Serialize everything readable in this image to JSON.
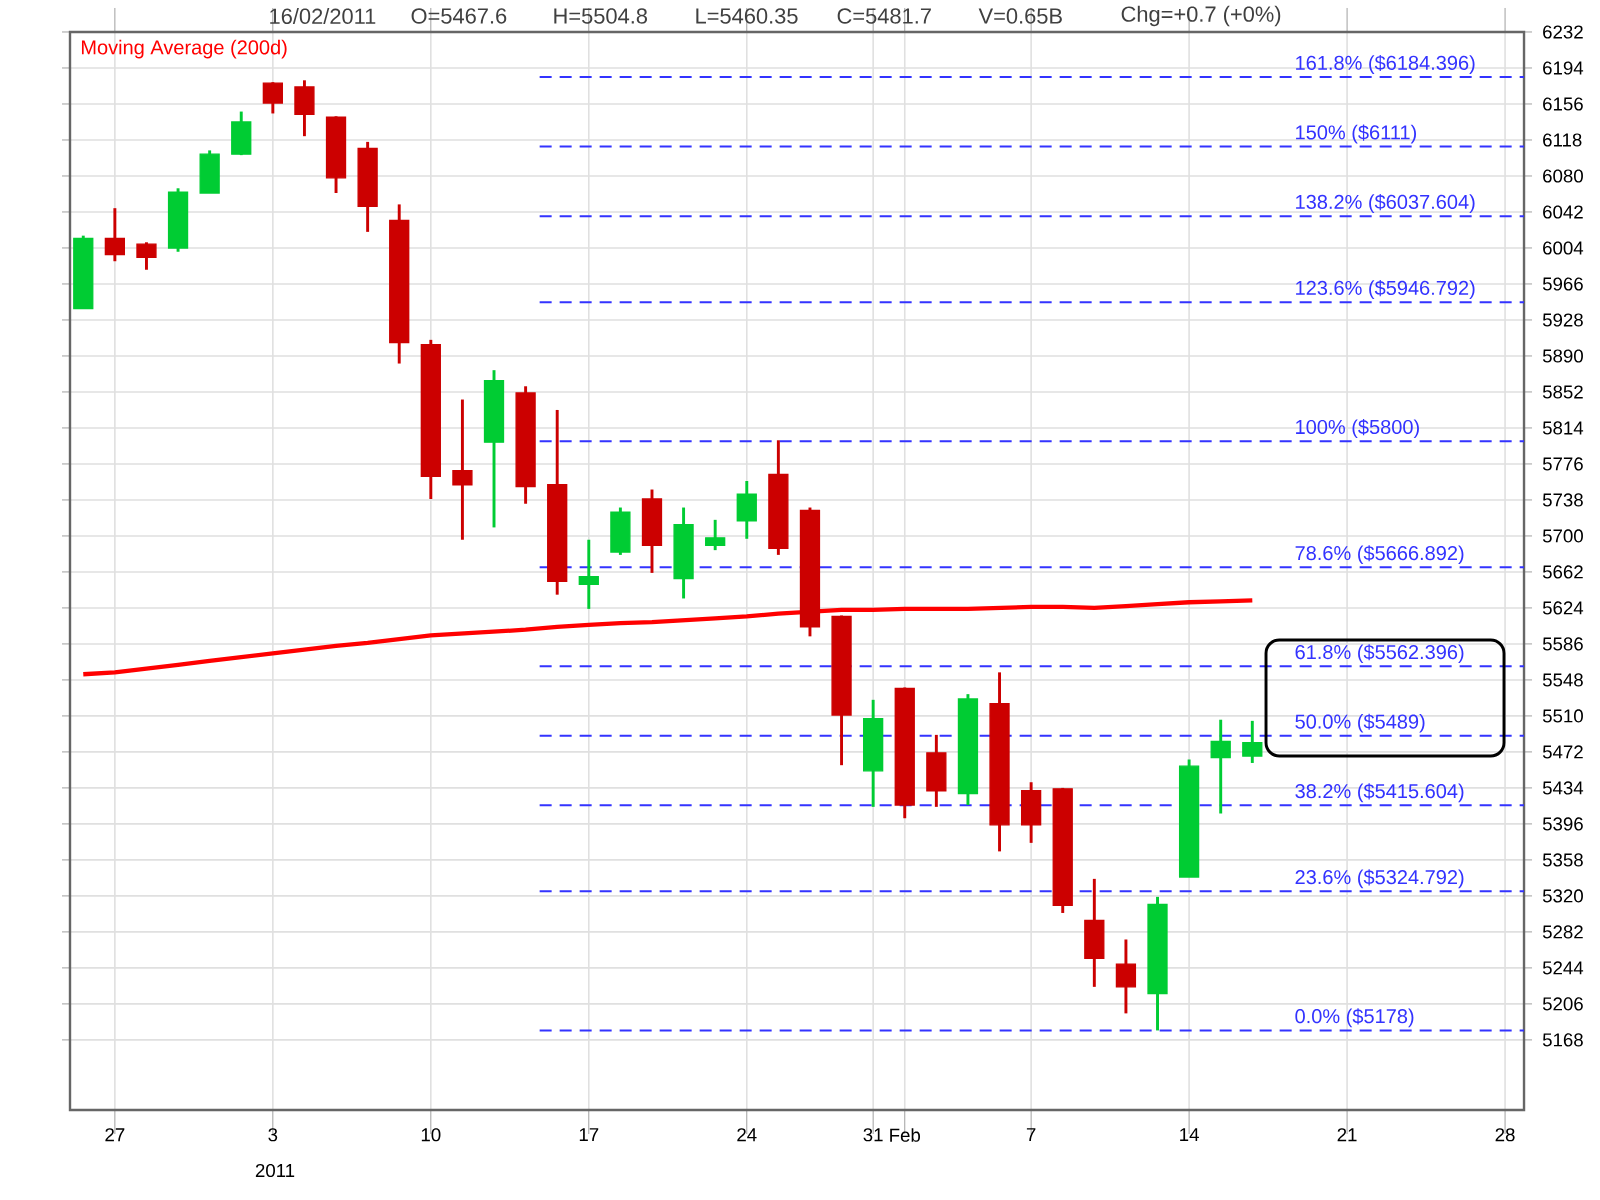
{
  "chart_data": {
    "type": "candlestick",
    "categories": [
      null,
      "27",
      null,
      null,
      null,
      null,
      "3",
      null,
      null,
      null,
      null,
      "10",
      null,
      null,
      null,
      null,
      "17",
      null,
      null,
      null,
      null,
      "24",
      null,
      null,
      null,
      "31",
      "Feb",
      null,
      null,
      null,
      "7",
      null,
      null,
      null,
      null,
      "14",
      null,
      null,
      null,
      null,
      "21",
      null,
      null,
      null,
      null,
      "28"
    ],
    "ohlc": [
      [
        5940,
        6017,
        5940,
        6014
      ],
      [
        6014,
        6046,
        5990,
        5997
      ],
      [
        6008,
        6010,
        5981,
        5994
      ],
      [
        6004,
        6067,
        6000,
        6063
      ],
      [
        6062,
        6107,
        6062,
        6103
      ],
      [
        6103,
        6148,
        6102,
        6137
      ],
      [
        6178,
        6179,
        6146,
        6157
      ],
      [
        6174,
        6181,
        6122,
        6145
      ],
      [
        6142,
        6143,
        6062,
        6078
      ],
      [
        6109,
        6116,
        6021,
        6048
      ],
      [
        6033,
        6050,
        5882,
        5904
      ],
      [
        5902,
        5907,
        5739,
        5763
      ],
      [
        5769,
        5844,
        5696,
        5754
      ],
      [
        5799,
        5875,
        5709,
        5864
      ],
      [
        5851,
        5858,
        5734,
        5752
      ],
      [
        5754,
        5833,
        5638,
        5652
      ],
      [
        5649,
        5696,
        5623,
        5657
      ],
      [
        5683,
        5730,
        5680,
        5725
      ],
      [
        5739,
        5749,
        5661,
        5690
      ],
      [
        5655,
        5730,
        5634,
        5712
      ],
      [
        5690,
        5717,
        5685,
        5698
      ],
      [
        5716,
        5758,
        5697,
        5744
      ],
      [
        5765,
        5801,
        5680,
        5687
      ],
      [
        5727,
        5730,
        5594,
        5604
      ],
      [
        5615,
        5616,
        5458,
        5511
      ],
      [
        5452,
        5527,
        5414,
        5507
      ],
      [
        5539,
        5540,
        5402,
        5416
      ],
      [
        5471,
        5490,
        5414,
        5431
      ],
      [
        5428,
        5533,
        5416,
        5528
      ],
      [
        5523,
        5556,
        5367,
        5395
      ],
      [
        5431,
        5440,
        5376,
        5395
      ],
      [
        5433,
        5434,
        5302,
        5310
      ],
      [
        5294,
        5338,
        5224,
        5254
      ],
      [
        5248,
        5274,
        5196,
        5224
      ],
      [
        5217,
        5319,
        5178,
        5311
      ],
      [
        5340,
        5464,
        5340,
        5457
      ],
      [
        5466,
        5506,
        5407,
        5483
      ],
      [
        5467.6,
        5504.8,
        5460.35,
        5481.7
      ],
      null,
      null,
      null,
      null,
      null,
      null,
      null,
      null
    ],
    "colors": [
      "#00cc33",
      "#cc0000",
      "#cc0000",
      "#00cc33",
      "#00cc33",
      "#00cc33",
      "#cc0000",
      "#cc0000",
      "#cc0000",
      "#cc0000",
      "#cc0000",
      "#cc0000",
      "#cc0000",
      "#00cc33",
      "#cc0000",
      "#cc0000",
      "#00cc33",
      "#00cc33",
      "#cc0000",
      "#00cc33",
      "#00cc33",
      "#00cc33",
      "#cc0000",
      "#cc0000",
      "#cc0000",
      "#00cc33",
      "#cc0000",
      "#cc0000",
      "#00cc33",
      "#cc0000",
      "#cc0000",
      "#cc0000",
      "#cc0000",
      "#cc0000",
      "#00cc33",
      "#00cc33",
      "#00cc33",
      "#00cc33",
      null,
      null,
      null,
      null,
      null,
      null,
      null,
      null
    ],
    "series": [
      {
        "name": "Moving Average (200d)",
        "type": "line",
        "color": "#ff0000",
        "values": [
          5554,
          5556,
          5560,
          5564,
          5568,
          5572,
          5576,
          5580,
          5584,
          5587,
          5591,
          5595,
          5597,
          5599,
          5601,
          5604,
          5606,
          5608,
          5609,
          5611,
          5613,
          5615,
          5618,
          null,
          5622,
          5622,
          5623,
          5623,
          5623,
          5624,
          5625,
          5625,
          5624,
          5626,
          5628,
          5630,
          5631,
          5632,
          null,
          null,
          null,
          null,
          null,
          null,
          null,
          null
        ]
      }
    ],
    "ylim": [
      5094,
      6232
    ],
    "yticks": [
      5168,
      5206,
      5244,
      5282,
      5320,
      5358,
      5396,
      5434,
      5472,
      5510,
      5548,
      5586,
      5624,
      5662,
      5700,
      5738,
      5776,
      5814,
      5852,
      5890,
      5928,
      5966,
      6004,
      6042,
      6080,
      6118,
      6156,
      6194,
      6232
    ],
    "grid": true,
    "legend": "top left",
    "ref_lines": [
      {
        "axis": "y",
        "value": 6184.396,
        "label": "161.8% ($6184.396)",
        "color": "#3333ff",
        "line_style": "dashed"
      },
      {
        "axis": "y",
        "value": 6111,
        "label": "150% ($6111)",
        "color": "#3333ff",
        "line_style": "dashed"
      },
      {
        "axis": "y",
        "value": 6037.604,
        "label": "138.2% ($6037.604)",
        "color": "#3333ff",
        "line_style": "dashed"
      },
      {
        "axis": "y",
        "value": 5946.792,
        "label": "123.6% ($5946.792)",
        "color": "#3333ff",
        "line_style": "dashed"
      },
      {
        "axis": "y",
        "value": 5800,
        "label": "100% ($5800)",
        "color": "#3333ff",
        "line_style": "dashed"
      },
      {
        "axis": "y",
        "value": 5666.892,
        "label": "78.6% ($5666.892)",
        "color": "#3333ff",
        "line_style": "dashed"
      },
      {
        "axis": "y",
        "value": 5562.396,
        "label": "61.8% ($5562.396)",
        "color": "#3333ff",
        "line_style": "dashed"
      },
      {
        "axis": "y",
        "value": 5489,
        "label": "50.0% ($5489)",
        "color": "#3333ff",
        "line_style": "dashed"
      },
      {
        "axis": "y",
        "value": 5415.604,
        "label": "38.2% ($5415.604)",
        "color": "#3333ff",
        "line_style": "dashed"
      },
      {
        "axis": "y",
        "value": 5324.792,
        "label": "23.6% ($5324.792)",
        "color": "#3333ff",
        "line_style": "dashed"
      },
      {
        "axis": "y",
        "value": 5178,
        "label": "0.0% ($5178)",
        "color": "#3333ff",
        "line_style": "dashed"
      }
    ],
    "annotations": [
      "16/02/2011",
      "O=5467.6",
      "H=5504.8",
      "L=5460.35",
      "C=5481.7",
      "V=0.65B",
      "Chg=+0.7 (+0%)",
      "2011"
    ]
  }
}
